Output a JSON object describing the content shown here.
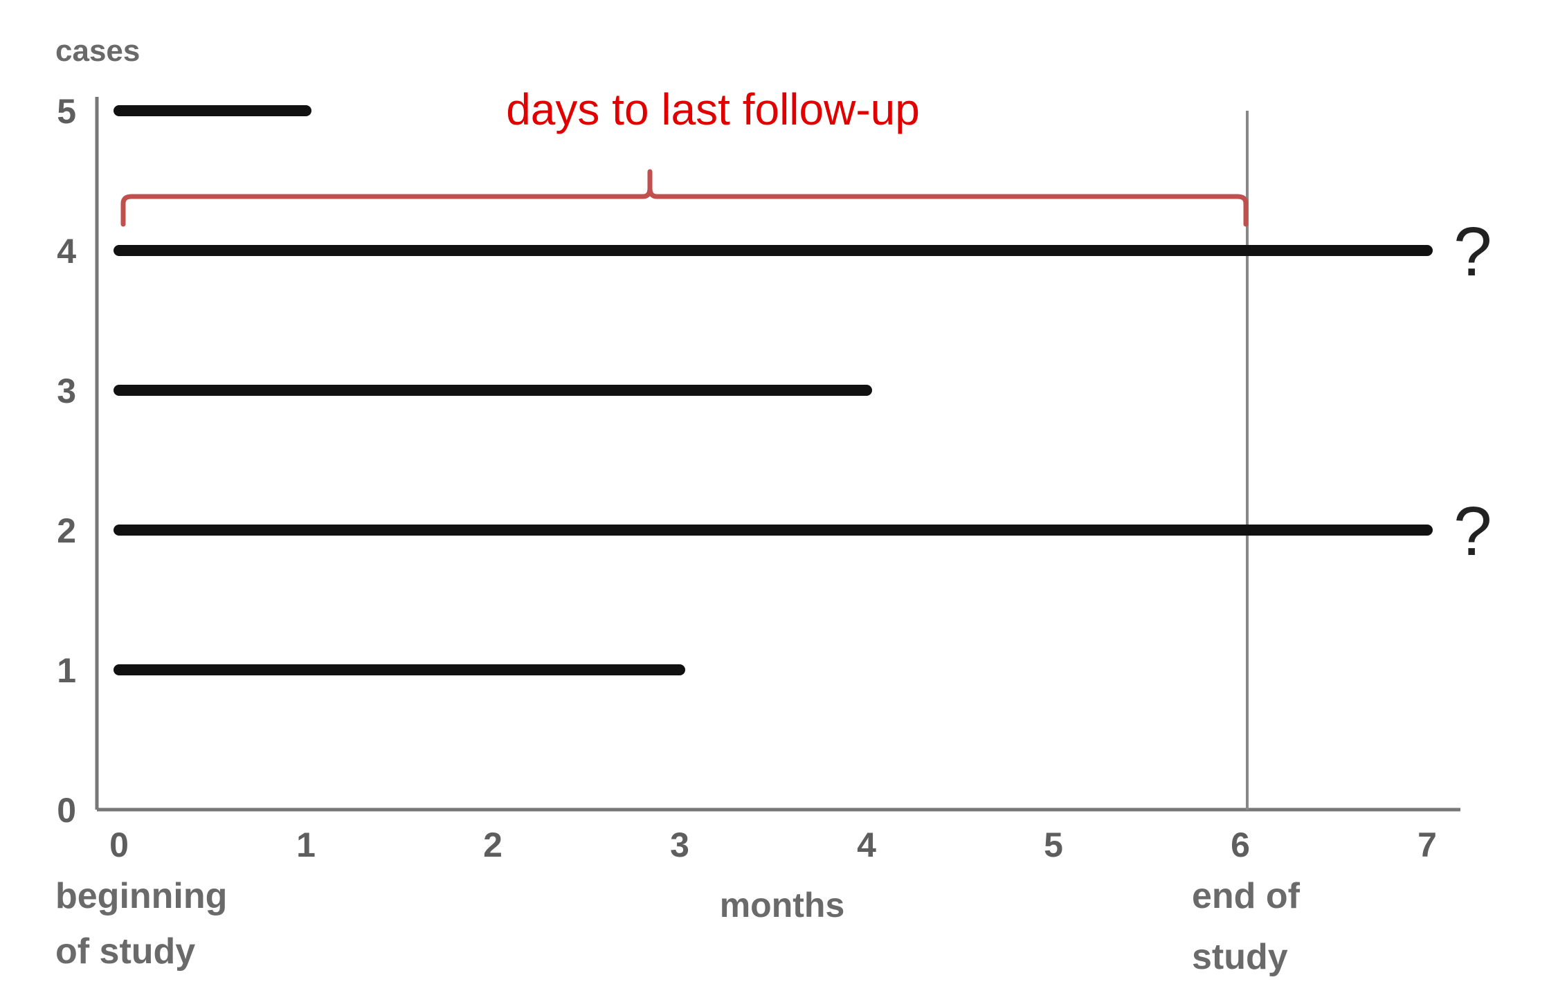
{
  "chart_data": {
    "type": "bar",
    "orientation": "horizontal",
    "ylabel": "cases",
    "xlabel": "months",
    "x_ticks": [
      "0",
      "1",
      "2",
      "3",
      "4",
      "5",
      "6",
      "7"
    ],
    "y_ticks": [
      "0",
      "1",
      "2",
      "3",
      "4",
      "5"
    ],
    "xlim": [
      0,
      7
    ],
    "ylim": [
      0,
      5
    ],
    "grid": false,
    "bars": [
      {
        "case": 1,
        "start": 0,
        "end": 3,
        "censored_marker": ""
      },
      {
        "case": 2,
        "start": 0,
        "end": 7,
        "censored_marker": "?"
      },
      {
        "case": 3,
        "start": 0,
        "end": 4,
        "censored_marker": ""
      },
      {
        "case": 4,
        "start": 0,
        "end": 7,
        "censored_marker": "?"
      },
      {
        "case": 5,
        "start": 0,
        "end": 1,
        "censored_marker": ""
      }
    ],
    "end_of_study_month": 6,
    "bracket_range": [
      0,
      6
    ],
    "bracket_case": 4,
    "annotations": {
      "bracket_label": "days to last follow-up",
      "start_label_line1": "beginning",
      "start_label_line2": "of study",
      "end_label_line1": "end of",
      "end_label_line2": "study"
    },
    "colors": {
      "bar": "#111111",
      "axis": "#777777",
      "annotation": "#e00000",
      "bracket": "#c0504d",
      "end_line": "#888888"
    }
  }
}
